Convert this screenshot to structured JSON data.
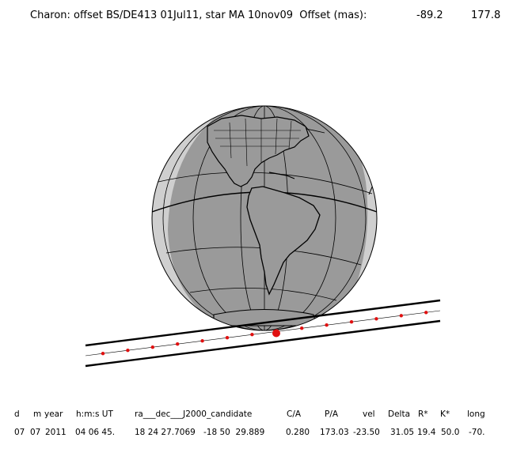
{
  "title": {
    "text": "Charon: offset BS/DE413 01Jul11, star MA 10nov09  Offset (mas):",
    "offset_x": "-89.2",
    "offset_y": "177.8"
  },
  "colors": {
    "ocean": "#9a9a9a",
    "land": "#9a9a9a",
    "night": "#cfcfcf",
    "coast": "#000000",
    "path_dot": "#e01010"
  },
  "header_row": {
    "d": "d",
    "m": "m",
    "year": "year",
    "hms": "h:m:s UT",
    "radec": "ra___dec___J2000_candidate",
    "ca": "C/A",
    "pa": "P/A",
    "vel": "vel",
    "delta": "Delta",
    "rstar": "R*",
    "kstar": "K*",
    "long": "long"
  },
  "value_row": {
    "d": "07",
    "m": "07",
    "year": "2011",
    "hms": "04 06 45.",
    "ra": "18 24 27.7069",
    "dec": "-18 50  29.889",
    "ca": "0.280",
    "pa": "173.03",
    "vel": "-23.50",
    "delta": "31.05",
    "rstar": "19.4",
    "kstar": "50.0",
    "long": "-70."
  }
}
